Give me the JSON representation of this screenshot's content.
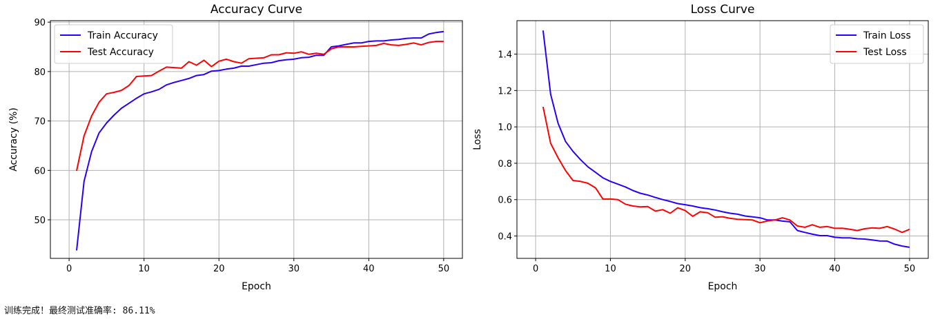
{
  "status_text": "训练完成！最终测试准确率: 86.11%",
  "chart_data": [
    {
      "type": "line",
      "title": "Accuracy Curve",
      "xlabel": "Epoch",
      "ylabel": "Accuracy (%)",
      "xlim": [
        -2.5,
        52.5
      ],
      "ylim": [
        42.2,
        90.3
      ],
      "xticks": [
        0,
        10,
        20,
        30,
        40,
        50
      ],
      "yticks": [
        50,
        60,
        70,
        80,
        90
      ],
      "grid": true,
      "legend_position": "top-left",
      "x": [
        1,
        2,
        3,
        4,
        5,
        6,
        7,
        8,
        9,
        10,
        11,
        12,
        13,
        14,
        15,
        16,
        17,
        18,
        19,
        20,
        21,
        22,
        23,
        24,
        25,
        26,
        27,
        28,
        29,
        30,
        31,
        32,
        33,
        34,
        35,
        36,
        37,
        38,
        39,
        40,
        41,
        42,
        43,
        44,
        45,
        46,
        47,
        48,
        49,
        50
      ],
      "series": [
        {
          "name": "Train Accuracy",
          "color": "#2400ff",
          "values": [
            43.8,
            57.8,
            63.8,
            67.6,
            69.6,
            71.2,
            72.6,
            73.6,
            74.6,
            75.5,
            75.9,
            76.4,
            77.3,
            77.8,
            78.2,
            78.6,
            79.2,
            79.4,
            80.1,
            80.2,
            80.5,
            80.7,
            81.1,
            81.1,
            81.4,
            81.7,
            81.8,
            82.2,
            82.4,
            82.5,
            82.8,
            82.9,
            83.3,
            83.3,
            85.0,
            85.2,
            85.5,
            85.8,
            85.8,
            86.1,
            86.2,
            86.2,
            86.4,
            86.5,
            86.7,
            86.8,
            86.8,
            87.6,
            87.9,
            88.1
          ]
        },
        {
          "name": "Test Accuracy",
          "color": "#ff0000",
          "values": [
            59.9,
            67.0,
            71.0,
            73.8,
            75.5,
            75.8,
            76.2,
            77.2,
            79.0,
            79.1,
            79.2,
            80.1,
            80.9,
            80.8,
            80.7,
            82.0,
            81.3,
            82.3,
            81.0,
            82.1,
            82.5,
            82.0,
            81.7,
            82.6,
            82.7,
            82.8,
            83.4,
            83.4,
            83.8,
            83.7,
            84.0,
            83.5,
            83.7,
            83.5,
            84.6,
            85.0,
            85.0,
            85.0,
            85.1,
            85.2,
            85.3,
            85.7,
            85.4,
            85.3,
            85.5,
            85.8,
            85.4,
            85.9,
            86.1,
            86.1
          ]
        }
      ]
    },
    {
      "type": "line",
      "title": "Loss Curve",
      "xlabel": "Epoch",
      "ylabel": "Loss",
      "xlim": [
        -2.5,
        52.5
      ],
      "ylim": [
        0.277,
        1.584
      ],
      "xticks": [
        0,
        10,
        20,
        30,
        40,
        50
      ],
      "yticks": [
        0.4,
        0.6,
        0.8,
        1.0,
        1.2,
        1.4
      ],
      "yticklabels": [
        "0.4",
        "0.6",
        "0.8",
        "1.0",
        "1.2",
        "1.4"
      ],
      "grid": true,
      "legend_position": "top-right",
      "x": [
        1,
        2,
        3,
        4,
        5,
        6,
        7,
        8,
        9,
        10,
        11,
        12,
        13,
        14,
        15,
        16,
        17,
        18,
        19,
        20,
        21,
        22,
        23,
        24,
        25,
        26,
        27,
        28,
        29,
        30,
        31,
        32,
        33,
        34,
        35,
        36,
        37,
        38,
        39,
        40,
        41,
        42,
        43,
        44,
        45,
        46,
        47,
        48,
        49,
        50
      ],
      "series": [
        {
          "name": "Train Loss",
          "color": "#2400ff",
          "values": [
            1.53,
            1.18,
            1.02,
            0.92,
            0.865,
            0.82,
            0.78,
            0.75,
            0.72,
            0.7,
            0.685,
            0.67,
            0.65,
            0.635,
            0.625,
            0.612,
            0.6,
            0.59,
            0.578,
            0.572,
            0.565,
            0.556,
            0.55,
            0.543,
            0.533,
            0.525,
            0.52,
            0.51,
            0.505,
            0.5,
            0.488,
            0.488,
            0.482,
            0.478,
            0.43,
            0.42,
            0.41,
            0.402,
            0.402,
            0.393,
            0.39,
            0.39,
            0.385,
            0.383,
            0.378,
            0.373,
            0.372,
            0.355,
            0.345,
            0.338
          ]
        },
        {
          "name": "Test Loss",
          "color": "#ff0000",
          "values": [
            1.11,
            0.91,
            0.83,
            0.76,
            0.705,
            0.7,
            0.69,
            0.665,
            0.603,
            0.603,
            0.6,
            0.575,
            0.565,
            0.56,
            0.562,
            0.537,
            0.545,
            0.525,
            0.555,
            0.54,
            0.508,
            0.533,
            0.528,
            0.503,
            0.506,
            0.497,
            0.492,
            0.49,
            0.488,
            0.473,
            0.483,
            0.488,
            0.5,
            0.488,
            0.455,
            0.448,
            0.462,
            0.448,
            0.452,
            0.442,
            0.443,
            0.437,
            0.43,
            0.44,
            0.445,
            0.442,
            0.452,
            0.438,
            0.42,
            0.437
          ]
        }
      ]
    }
  ]
}
